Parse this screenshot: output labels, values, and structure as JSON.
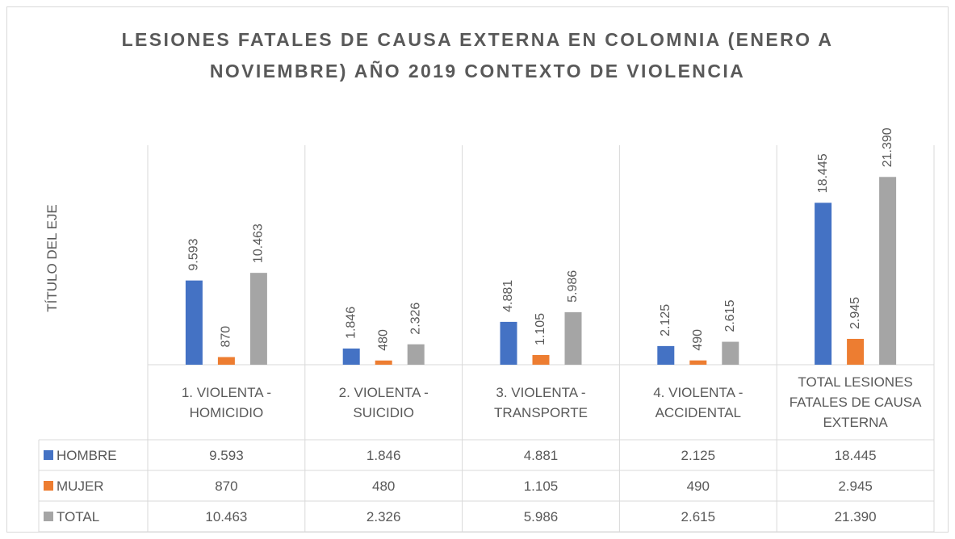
{
  "chart_data": {
    "type": "bar",
    "title": "LESIONES FATALES DE CAUSA EXTERNA EN COLOMNIA (ENERO A NOVIEMBRE) AÑO 2019 CONTEXTO DE VIOLENCIA",
    "y_label": "TÍTULO DEL EJE",
    "categories": [
      "1. VIOLENTA - HOMICIDIO",
      "2. VIOLENTA - SUICIDIO",
      "3. VIOLENTA - TRANSPORTE",
      "4. VIOLENTA - ACCIDENTAL",
      "TOTAL LESIONES FATALES DE CAUSA EXTERNA"
    ],
    "series": [
      {
        "name": "HOMBRE",
        "color": "#4472c4",
        "values": [
          9593,
          1846,
          4881,
          2125,
          18445
        ],
        "value_labels": [
          "9.593",
          "1.846",
          "4.881",
          "2.125",
          "18.445"
        ]
      },
      {
        "name": "MUJER",
        "color": "#ed7d31",
        "values": [
          870,
          480,
          1105,
          490,
          2945
        ],
        "value_labels": [
          "870",
          "480",
          "1.105",
          "490",
          "2.945"
        ]
      },
      {
        "name": "TOTAL",
        "color": "#a5a5a5",
        "values": [
          10463,
          2326,
          5986,
          2615,
          21390
        ],
        "value_labels": [
          "10.463",
          "2.326",
          "5.986",
          "2.615",
          "21.390"
        ]
      }
    ],
    "ylim": [
      0,
      25000
    ],
    "data_table": true
  }
}
